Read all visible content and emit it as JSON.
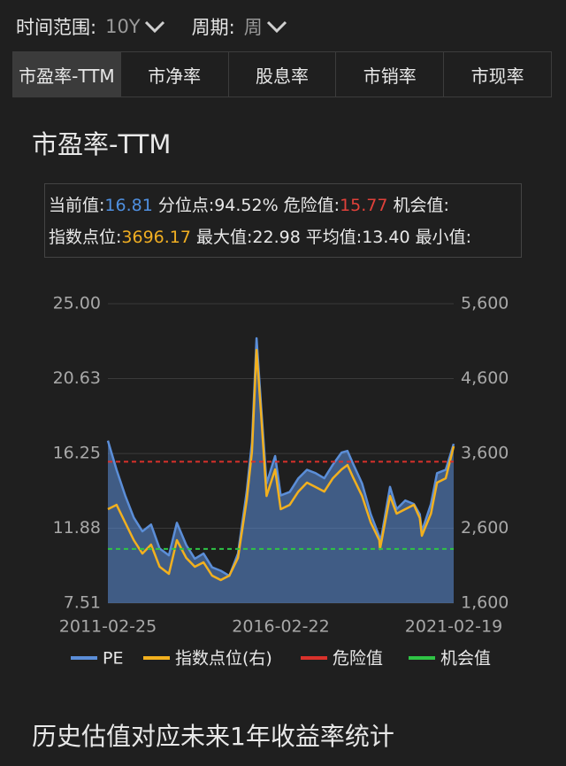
{
  "filters": [
    {
      "label": "时间范围:",
      "value": "10Y"
    },
    {
      "label": "周期:",
      "value": "周"
    }
  ],
  "tabs": [
    "市盈率-TTM",
    "市净率",
    "股息率",
    "市销率",
    "市现率"
  ],
  "active_tab": 0,
  "section_title": "市盈率-TTM",
  "stats": [
    [
      {
        "label": "当前值:",
        "value": "16.81",
        "color": "#4f8fdf"
      },
      {
        "label": "分位点:",
        "value": "94.52%"
      },
      {
        "label": "危险值:",
        "value": "15.77",
        "color": "#e0413a"
      },
      {
        "label": "机会值:"
      }
    ],
    [
      {
        "label": "指数点位:",
        "value": "3696.17",
        "color": "#f0ae22"
      },
      {
        "label": "最大值:",
        "value": "22.98"
      },
      {
        "label": "平均值:",
        "value": "13.40"
      },
      {
        "label": "最小值:"
      }
    ]
  ],
  "chart_data": {
    "type": "line",
    "x": [
      "2011-02-25",
      "2011-05-27",
      "2011-08-26",
      "2011-11-25",
      "2012-02-24",
      "2012-05-25",
      "2012-08-24",
      "2012-11-30",
      "2013-02-22",
      "2013-05-31",
      "2013-08-30",
      "2013-11-29",
      "2014-02-28",
      "2014-05-30",
      "2014-08-29",
      "2014-11-28",
      "2015-02-27",
      "2015-04-24",
      "2015-06-12",
      "2015-07-31",
      "2015-09-25",
      "2015-12-25",
      "2016-02-22",
      "2016-05-27",
      "2016-08-26",
      "2016-11-25",
      "2017-02-24",
      "2017-05-26",
      "2017-08-25",
      "2017-11-24",
      "2018-01-26",
      "2018-03-30",
      "2018-06-29",
      "2018-09-28",
      "2018-12-28",
      "2019-01-04",
      "2019-04-19",
      "2019-06-28",
      "2019-09-27",
      "2019-12-27",
      "2020-02-28",
      "2020-03-20",
      "2020-06-24",
      "2020-08-28",
      "2020-11-27",
      "2021-02-19"
    ],
    "xlim": [
      "2011-02-25",
      "2021-02-19"
    ],
    "xticks": [
      "2011-02-25",
      "2016-02-22",
      "2021-02-19"
    ],
    "ylim": [
      7.51,
      25
    ],
    "yticks": [
      7.51,
      11.88,
      16.25,
      20.63,
      {
        "value": 25,
        "label": "25.00"
      }
    ],
    "y2lim": [
      1600,
      5600
    ],
    "y2ticks": [
      {
        "value": 1600,
        "label": "1,600"
      },
      {
        "value": 2600,
        "label": "2,600"
      },
      {
        "value": 3600,
        "label": "3,600"
      },
      {
        "value": 4600,
        "label": "4,600"
      },
      {
        "value": 5600,
        "label": "5,600"
      }
    ],
    "grid": true,
    "series": [
      {
        "name": "PE",
        "color": "#5b8ed8",
        "area": true,
        "values": [
          17.0,
          15.3,
          13.8,
          12.5,
          11.7,
          12.1,
          10.7,
          10.3,
          12.2,
          10.9,
          10.1,
          10.4,
          9.6,
          9.4,
          9.1,
          10.4,
          14.0,
          16.9,
          22.98,
          18.9,
          14.5,
          16.1,
          13.8,
          14.0,
          14.8,
          15.3,
          15.1,
          14.8,
          15.6,
          16.3,
          16.4,
          15.6,
          14.5,
          12.7,
          11.4,
          10.9,
          14.3,
          13.0,
          13.5,
          13.3,
          12.7,
          11.7,
          13.3,
          15.1,
          15.3,
          16.81
        ]
      },
      {
        "name": "指数点位(右)",
        "color": "#f2b01e",
        "axis": "y2",
        "values": [
          2854,
          2913,
          2677,
          2440,
          2262,
          2381,
          2085,
          1990,
          2440,
          2203,
          2085,
          2144,
          1967,
          1908,
          1967,
          2203,
          2972,
          3623,
          4983,
          4096,
          3031,
          3386,
          2854,
          2913,
          3090,
          3209,
          3150,
          3090,
          3268,
          3386,
          3445,
          3268,
          3031,
          2677,
          2440,
          2322,
          3031,
          2795,
          2854,
          2913,
          2736,
          2499,
          2795,
          3209,
          3268,
          3696.17
        ]
      }
    ],
    "reference_lines": [
      {
        "name": "危险值",
        "color": "#d9312b",
        "value": 15.77
      },
      {
        "name": "机会值",
        "color": "#2fc445",
        "value": 10.67
      }
    ]
  },
  "footer_title": "历史估值对应未来1年收益率统计"
}
